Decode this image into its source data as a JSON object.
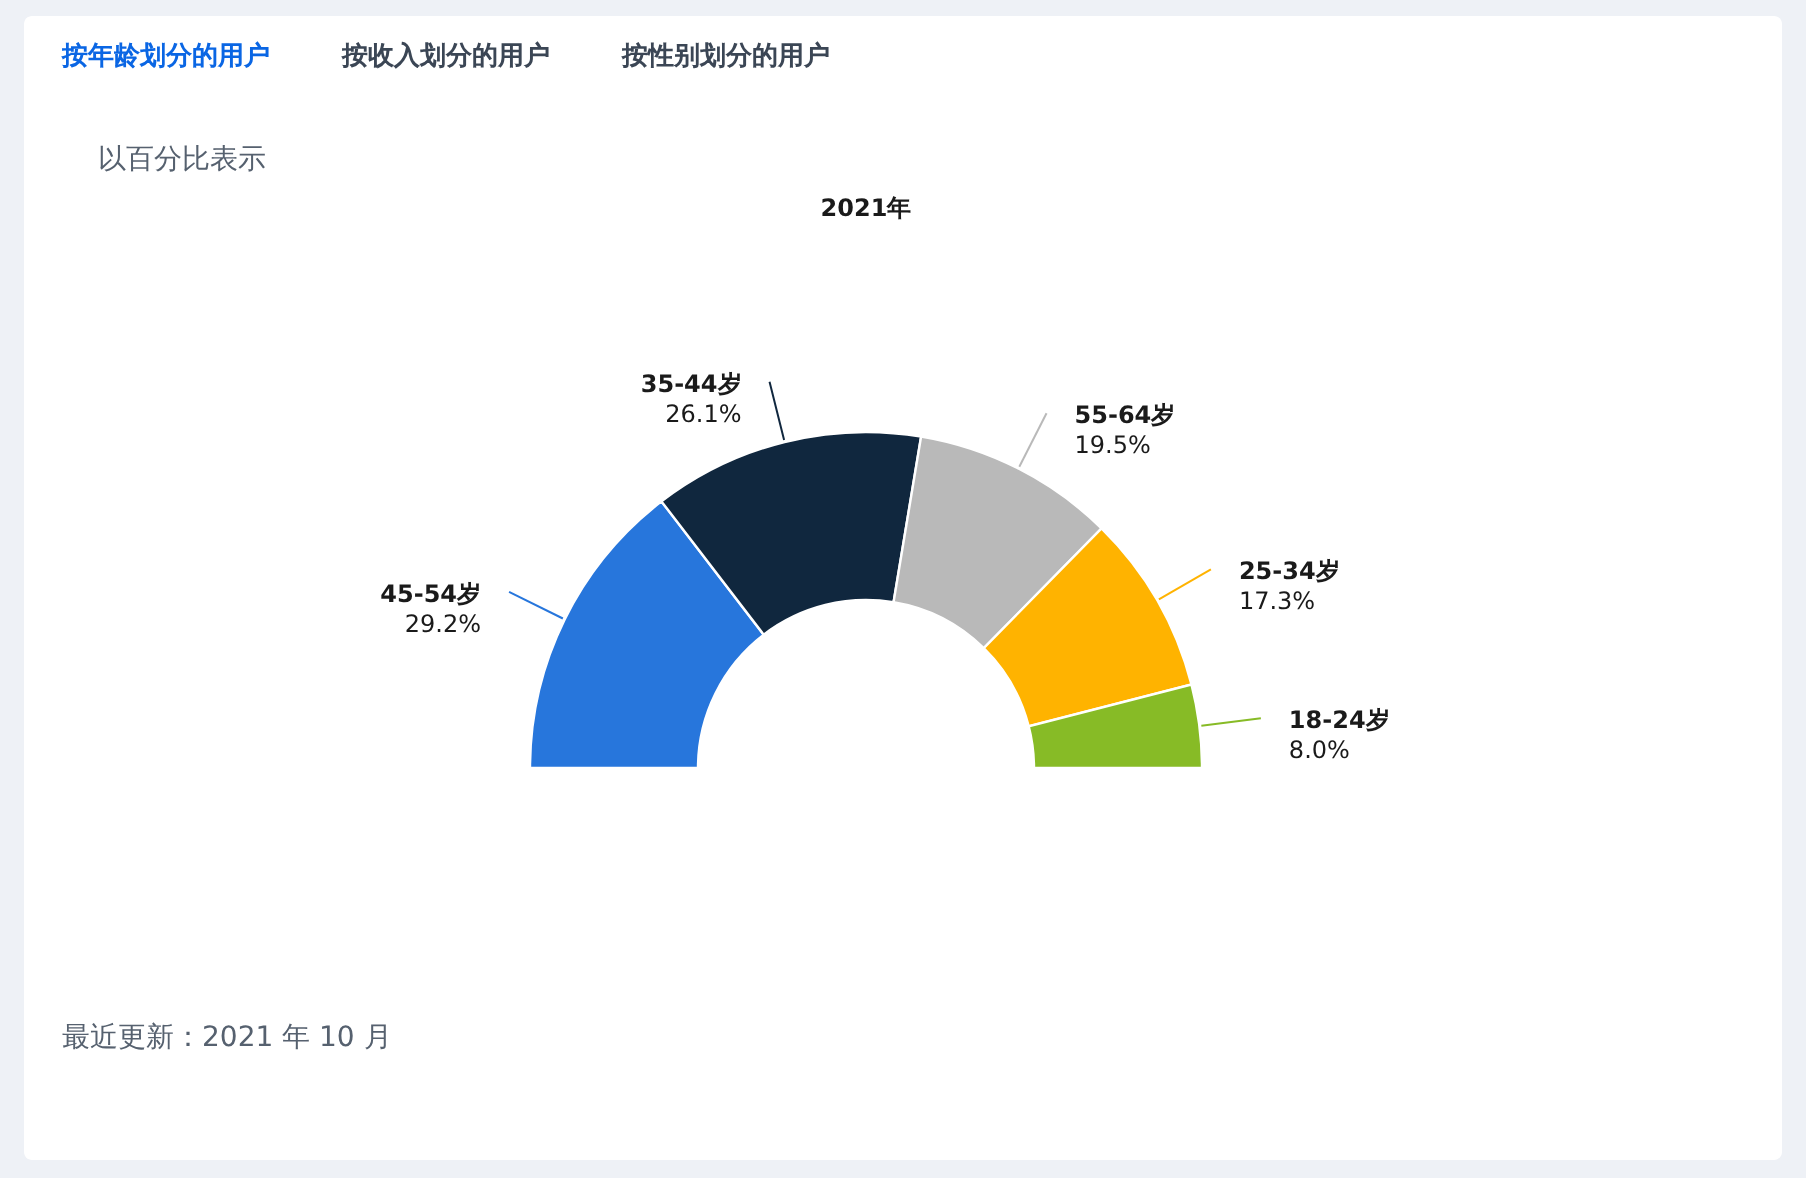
{
  "chart_data": {
    "type": "donut",
    "title": "2021年",
    "subtitle": "以百分比表示",
    "categories": [
      "45-54岁",
      "35-44岁",
      "55-64岁",
      "25-34岁",
      "18-24岁"
    ],
    "values": [
      29.2,
      26.1,
      19.5,
      17.3,
      8.0
    ],
    "colors": [
      "#2776dc",
      "#10273e",
      "#b9b9b9",
      "#ffb300",
      "#87bb26"
    ],
    "value_labels": [
      "29.2%",
      "26.1%",
      "19.5%",
      "17.3%",
      "8.0%"
    ],
    "annotations": [
      "按年龄划分的用户",
      "按收入划分的用户",
      "按性别划分的用户",
      "最近更新：2021 年 10 月"
    ]
  }
}
